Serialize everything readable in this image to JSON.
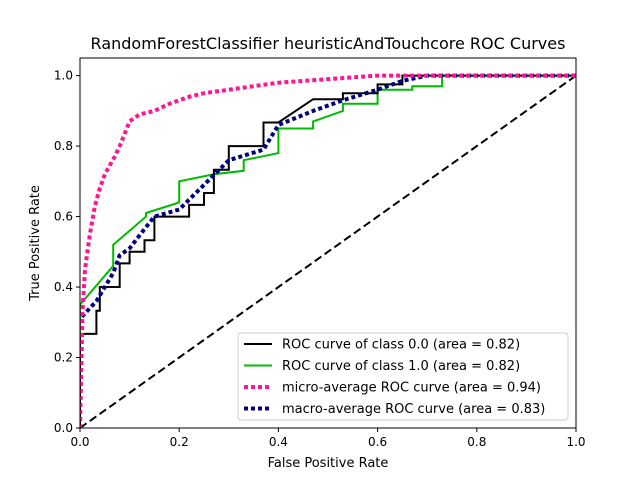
{
  "chart_data": {
    "type": "line",
    "title": "RandomForestClassifier heuristicAndTouchcore ROC Curves",
    "xlabel": "False Positive Rate",
    "ylabel": "True Positive Rate",
    "xlim": [
      0,
      1
    ],
    "ylim": [
      0,
      1.05
    ],
    "xticks": [
      "0.0",
      "0.2",
      "0.4",
      "0.6",
      "0.8",
      "1.0"
    ],
    "yticks": [
      "0.0",
      "0.2",
      "0.4",
      "0.6",
      "0.8",
      "1.0"
    ],
    "grid": false,
    "legend_position": "lower-right",
    "series": [
      {
        "name": "ROC curve of class 0.0 (area = 0.82)",
        "color": "#000000",
        "style": "solid",
        "x": [
          0,
          0,
          0.033,
          0.033,
          0.04,
          0.04,
          0.08,
          0.08,
          0.1,
          0.1,
          0.13,
          0.13,
          0.15,
          0.15,
          0.22,
          0.22,
          0.25,
          0.25,
          0.27,
          0.27,
          0.3,
          0.3,
          0.37,
          0.37,
          0.4,
          0.4,
          0.47,
          0.47,
          0.53,
          0.53,
          0.6,
          0.6,
          0.65,
          0.65,
          1.0
        ],
        "y": [
          0,
          0.267,
          0.267,
          0.333,
          0.333,
          0.4,
          0.4,
          0.467,
          0.467,
          0.5,
          0.5,
          0.533,
          0.533,
          0.6,
          0.6,
          0.633,
          0.633,
          0.667,
          0.667,
          0.733,
          0.733,
          0.8,
          0.8,
          0.867,
          0.867,
          0.867,
          0.933,
          0.933,
          0.933,
          0.95,
          0.95,
          0.975,
          0.975,
          1.0,
          1.0
        ]
      },
      {
        "name": "ROC curve of class 1.0 (area = 0.82)",
        "color": "#00bb00",
        "style": "solid",
        "x": [
          0,
          0,
          0.067,
          0.067,
          0.133,
          0.133,
          0.2,
          0.2,
          0.27,
          0.27,
          0.33,
          0.33,
          0.4,
          0.4,
          0.47,
          0.47,
          0.53,
          0.53,
          0.6,
          0.6,
          0.67,
          0.67,
          0.73,
          0.73,
          1.0
        ],
        "y": [
          0,
          0.35,
          0.46,
          0.52,
          0.6,
          0.61,
          0.64,
          0.7,
          0.72,
          0.72,
          0.73,
          0.76,
          0.78,
          0.85,
          0.85,
          0.87,
          0.9,
          0.92,
          0.92,
          0.96,
          0.96,
          0.97,
          0.97,
          1.0,
          1.0
        ]
      },
      {
        "name": "micro-average ROC curve (area = 0.94)",
        "color": "#ff1493",
        "style": "dotted",
        "x": [
          0,
          0.005,
          0.01,
          0.02,
          0.03,
          0.04,
          0.05,
          0.07,
          0.08,
          0.1,
          0.12,
          0.15,
          0.18,
          0.22,
          0.25,
          0.3,
          0.35,
          0.4,
          0.5,
          0.6,
          0.7,
          1.0
        ],
        "y": [
          0,
          0.33,
          0.45,
          0.55,
          0.63,
          0.68,
          0.72,
          0.77,
          0.8,
          0.87,
          0.89,
          0.9,
          0.92,
          0.94,
          0.95,
          0.96,
          0.97,
          0.98,
          0.99,
          1.0,
          1.0,
          1.0
        ]
      },
      {
        "name": "macro-average ROC curve (area = 0.83)",
        "color": "#000080",
        "style": "dotted",
        "x": [
          0,
          0,
          0.033,
          0.067,
          0.08,
          0.1,
          0.133,
          0.15,
          0.2,
          0.25,
          0.3,
          0.37,
          0.4,
          0.47,
          0.53,
          0.6,
          0.65,
          0.7,
          0.75,
          1.0
        ],
        "y": [
          0,
          0.31,
          0.36,
          0.44,
          0.49,
          0.51,
          0.57,
          0.6,
          0.62,
          0.69,
          0.76,
          0.79,
          0.86,
          0.9,
          0.93,
          0.96,
          0.985,
          1.0,
          1.0,
          1.0
        ]
      }
    ],
    "reference_line": {
      "x": [
        0,
        1
      ],
      "y": [
        0,
        1
      ],
      "color": "#000000",
      "style": "dashed"
    }
  }
}
